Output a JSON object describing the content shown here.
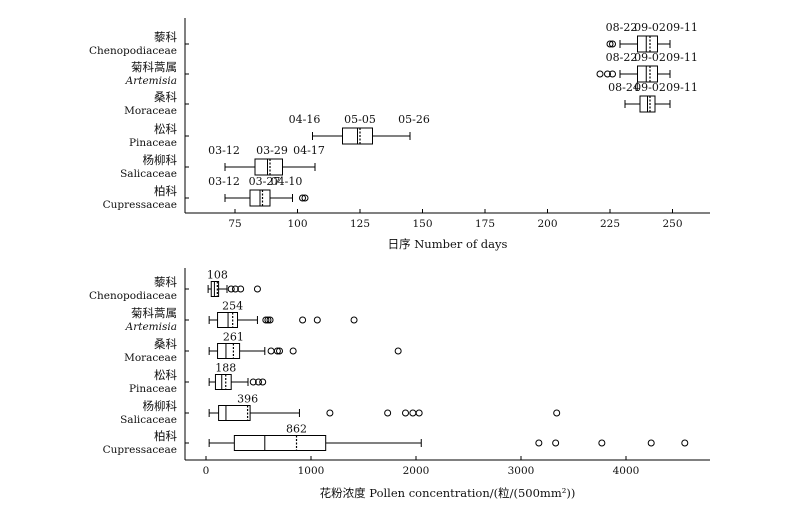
{
  "chart_data": [
    {
      "type": "boxplot",
      "xlabel": "日序 Number of days",
      "xlim": [
        55,
        265
      ],
      "xticks": [
        75,
        100,
        125,
        150,
        175,
        200,
        225,
        250
      ],
      "categories": [
        {
          "cn": "藜科",
          "en": "Chenopodiaceae",
          "italic": false
        },
        {
          "cn": "菊科蒿属",
          "en": "Artemisia",
          "italic": true
        },
        {
          "cn": "桑科",
          "en": "Moraceae",
          "italic": false
        },
        {
          "cn": "松科",
          "en": "Pinaceae",
          "italic": false
        },
        {
          "cn": "杨柳科",
          "en": "Salicaceae",
          "italic": false
        },
        {
          "cn": "柏科",
          "en": "Cupressaceae",
          "italic": false
        }
      ],
      "boxes": [
        {
          "whisker_low": 229,
          "q1": 236,
          "median": 239.5,
          "mean": 241,
          "q3": 244,
          "whisker_high": 249,
          "outliers": [
            225,
            226
          ]
        },
        {
          "whisker_low": 229,
          "q1": 236,
          "median": 239.5,
          "mean": 241,
          "q3": 244,
          "whisker_high": 249,
          "outliers": [
            221,
            224,
            226
          ]
        },
        {
          "whisker_low": 231,
          "q1": 237,
          "median": 240,
          "mean": 241,
          "q3": 243,
          "whisker_high": 249,
          "outliers": []
        },
        {
          "whisker_low": 106,
          "q1": 118,
          "median": 124,
          "mean": 125,
          "q3": 130,
          "whisker_high": 145,
          "outliers": []
        },
        {
          "whisker_low": 71,
          "q1": 83,
          "median": 88,
          "mean": 89,
          "q3": 94,
          "whisker_high": 107,
          "outliers": []
        },
        {
          "whisker_low": 71,
          "q1": 81,
          "median": 85,
          "mean": 86,
          "q3": 89,
          "whisker_high": 98,
          "outliers": [
            102,
            103
          ]
        }
      ],
      "annotations": [
        [
          "08-22",
          "09-02",
          "09-11"
        ],
        [
          "08-22",
          "09-02",
          "09-11"
        ],
        [
          "08-24",
          "09-02",
          "09-11"
        ],
        [
          "04-16",
          "05-05",
          "05-26"
        ],
        [
          "03-12",
          "03-29",
          "04-17"
        ],
        [
          "03-12",
          "03-27",
          "04-10"
        ]
      ]
    },
    {
      "type": "boxplot",
      "xlabel": "花粉浓度 Pollen concentration/(粒/(500mm²))",
      "xlim": [
        -200,
        4800
      ],
      "xticks": [
        0,
        1000,
        2000,
        3000,
        4000
      ],
      "categories": [
        {
          "cn": "藜科",
          "en": "Chenopodiaceae",
          "italic": false
        },
        {
          "cn": "菊科蒿属",
          "en": "Artemisia",
          "italic": true
        },
        {
          "cn": "桑科",
          "en": "Moraceae",
          "italic": false
        },
        {
          "cn": "松科",
          "en": "Pinaceae",
          "italic": false
        },
        {
          "cn": "杨柳科",
          "en": "Salicaceae",
          "italic": false
        },
        {
          "cn": "柏科",
          "en": "Cupressaceae",
          "italic": false
        }
      ],
      "boxes": [
        {
          "whisker_low": 20,
          "q1": 50,
          "median": 80,
          "mean": 108,
          "q3": 120,
          "whisker_high": 200,
          "outliers": [
            240,
            280,
            330,
            490
          ]
        },
        {
          "whisker_low": 30,
          "q1": 110,
          "median": 210,
          "mean": 254,
          "q3": 300,
          "whisker_high": 490,
          "outliers": [
            570,
            590,
            610,
            920,
            1060,
            1410
          ]
        },
        {
          "whisker_low": 30,
          "q1": 110,
          "median": 190,
          "mean": 261,
          "q3": 320,
          "whisker_high": 560,
          "outliers": [
            620,
            680,
            700,
            830,
            1830
          ]
        },
        {
          "whisker_low": 30,
          "q1": 90,
          "median": 150,
          "mean": 188,
          "q3": 240,
          "whisker_high": 400,
          "outliers": [
            450,
            500,
            540
          ]
        },
        {
          "whisker_low": 30,
          "q1": 120,
          "median": 190,
          "mean": 396,
          "q3": 420,
          "whisker_high": 890,
          "outliers": [
            1180,
            1730,
            1900,
            1970,
            2030,
            3340
          ]
        },
        {
          "whisker_low": 30,
          "q1": 270,
          "median": 560,
          "mean": 862,
          "q3": 1140,
          "whisker_high": 2050,
          "outliers": [
            3170,
            3330,
            3770,
            4240,
            4560
          ]
        }
      ],
      "annotations": [
        [
          "108"
        ],
        [
          "254"
        ],
        [
          "261"
        ],
        [
          "188"
        ],
        [
          "396"
        ],
        [
          "862"
        ]
      ]
    }
  ]
}
